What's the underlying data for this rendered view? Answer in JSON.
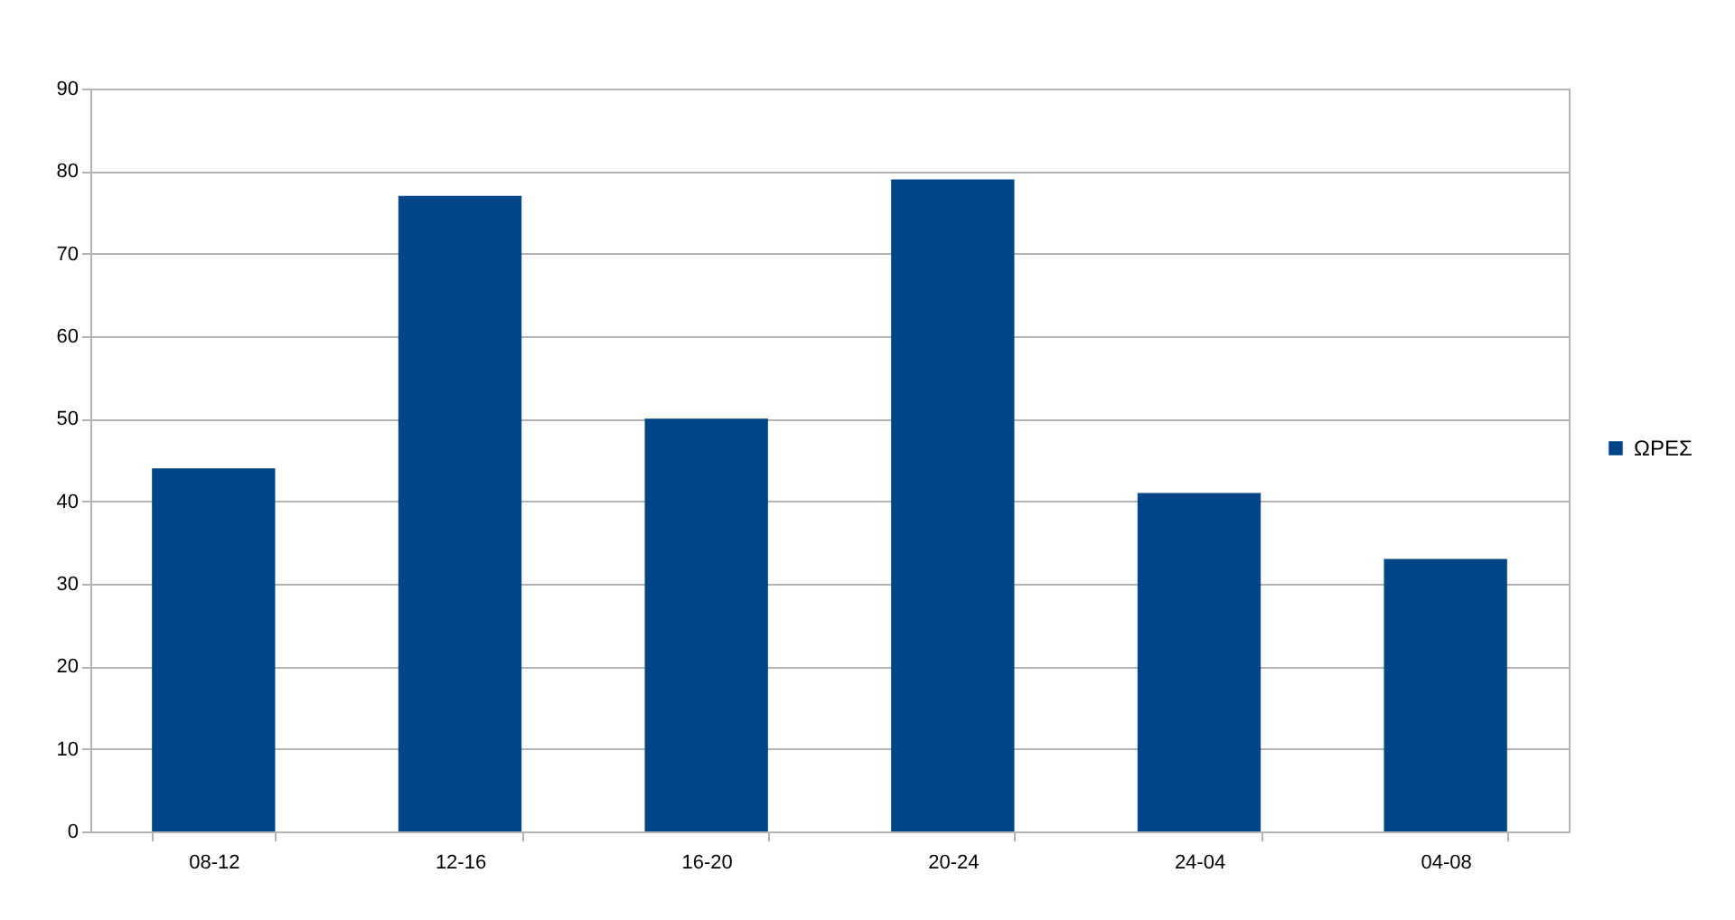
{
  "chart_data": {
    "type": "bar",
    "categories": [
      "08-12",
      "12-16",
      "16-20",
      "20-24",
      "24-04",
      "04-08"
    ],
    "series": [
      {
        "name": "ΩΡΕΣ",
        "color": "#004586",
        "values": [
          44,
          77,
          50,
          79,
          41,
          33
        ]
      }
    ],
    "ylim": [
      0,
      90
    ],
    "yticks": [
      0,
      10,
      20,
      30,
      40,
      50,
      60,
      70,
      80,
      90
    ],
    "grid": "y",
    "legend": "right"
  }
}
